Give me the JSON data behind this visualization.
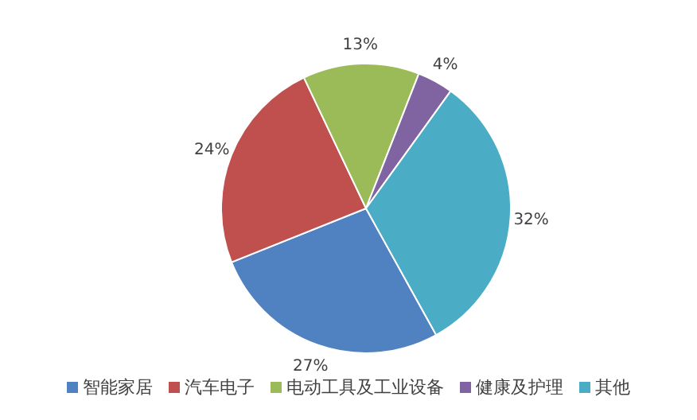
{
  "chart_data": {
    "type": "pie",
    "categories": [
      "智能家居",
      "汽车电子",
      "电动工具及工业设备",
      "健康及护理",
      "其他"
    ],
    "values": [
      27,
      24,
      13,
      4,
      32
    ],
    "colors": [
      "#5081c0",
      "#c0504d",
      "#9bbb59",
      "#8064a2",
      "#4bacc6"
    ],
    "value_labels": [
      "27%",
      "24%",
      "13%",
      "4%",
      "32%"
    ],
    "legend": "bottom"
  }
}
